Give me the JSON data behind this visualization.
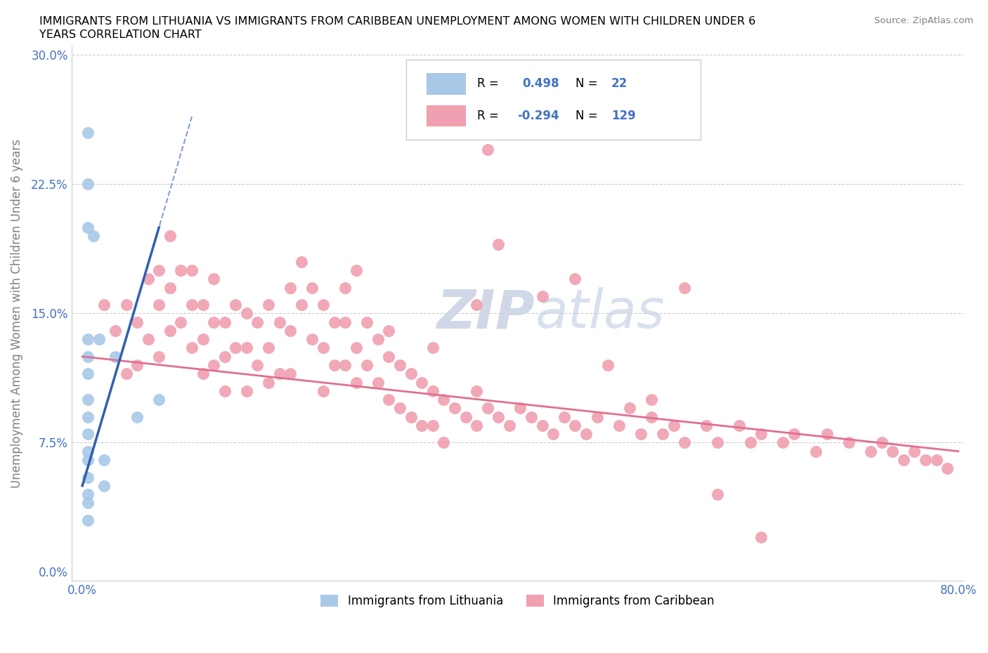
{
  "title_line1": "IMMIGRANTS FROM LITHUANIA VS IMMIGRANTS FROM CARIBBEAN UNEMPLOYMENT AMONG WOMEN WITH CHILDREN UNDER 6",
  "title_line2": "YEARS CORRELATION CHART",
  "source": "Source: ZipAtlas.com",
  "ylabel": "Unemployment Among Women with Children Under 6 years",
  "xlim": [
    0.0,
    0.8
  ],
  "ylim": [
    0.0,
    0.3
  ],
  "yticks": [
    0.0,
    0.075,
    0.15,
    0.225,
    0.3
  ],
  "ytick_labels": [
    "0.0%",
    "7.5%",
    "15.0%",
    "22.5%",
    "30.0%"
  ],
  "xtick_positions": [
    0.0,
    0.8
  ],
  "xtick_labels": [
    "0.0%",
    "80.0%"
  ],
  "R_blue": 0.498,
  "N_blue": 22,
  "R_pink": -0.294,
  "N_pink": 129,
  "blue_dot_color": "#a8c8e8",
  "pink_dot_color": "#f0a0b0",
  "blue_line_color": "#3060b0",
  "pink_line_color": "#e07090",
  "grid_color": "#cccccc",
  "watermark_color": "#d0d8e8",
  "blue_scatter_x": [
    0.005,
    0.005,
    0.005,
    0.005,
    0.005,
    0.005,
    0.005,
    0.005,
    0.005,
    0.005,
    0.005,
    0.005,
    0.005,
    0.005,
    0.005,
    0.01,
    0.015,
    0.02,
    0.02,
    0.03,
    0.05,
    0.07
  ],
  "blue_scatter_y": [
    0.255,
    0.225,
    0.2,
    0.135,
    0.125,
    0.115,
    0.1,
    0.09,
    0.08,
    0.07,
    0.065,
    0.055,
    0.045,
    0.04,
    0.03,
    0.195,
    0.135,
    0.065,
    0.05,
    0.125,
    0.09,
    0.1
  ],
  "pink_scatter_x": [
    0.02,
    0.03,
    0.04,
    0.04,
    0.05,
    0.05,
    0.06,
    0.06,
    0.07,
    0.07,
    0.07,
    0.08,
    0.08,
    0.08,
    0.09,
    0.09,
    0.1,
    0.1,
    0.1,
    0.11,
    0.11,
    0.11,
    0.12,
    0.12,
    0.12,
    0.13,
    0.13,
    0.13,
    0.14,
    0.14,
    0.15,
    0.15,
    0.15,
    0.16,
    0.16,
    0.17,
    0.17,
    0.17,
    0.18,
    0.18,
    0.19,
    0.19,
    0.19,
    0.2,
    0.2,
    0.21,
    0.21,
    0.22,
    0.22,
    0.22,
    0.23,
    0.23,
    0.24,
    0.24,
    0.24,
    0.25,
    0.25,
    0.26,
    0.26,
    0.27,
    0.27,
    0.28,
    0.28,
    0.29,
    0.29,
    0.3,
    0.3,
    0.31,
    0.31,
    0.32,
    0.32,
    0.33,
    0.33,
    0.34,
    0.35,
    0.36,
    0.36,
    0.37,
    0.38,
    0.39,
    0.4,
    0.41,
    0.42,
    0.43,
    0.44,
    0.45,
    0.46,
    0.47,
    0.49,
    0.5,
    0.51,
    0.52,
    0.53,
    0.54,
    0.55,
    0.57,
    0.58,
    0.6,
    0.61,
    0.62,
    0.64,
    0.65,
    0.67,
    0.68,
    0.7,
    0.72,
    0.73,
    0.74,
    0.75,
    0.76,
    0.77,
    0.78,
    0.79,
    0.37,
    0.25,
    0.45,
    0.55,
    0.38,
    0.42,
    0.28,
    0.32,
    0.36,
    0.48,
    0.52,
    0.58,
    0.62
  ],
  "pink_scatter_y": [
    0.155,
    0.14,
    0.155,
    0.115,
    0.145,
    0.12,
    0.17,
    0.135,
    0.175,
    0.155,
    0.125,
    0.195,
    0.165,
    0.14,
    0.175,
    0.145,
    0.175,
    0.155,
    0.13,
    0.155,
    0.135,
    0.115,
    0.17,
    0.145,
    0.12,
    0.145,
    0.125,
    0.105,
    0.155,
    0.13,
    0.15,
    0.13,
    0.105,
    0.145,
    0.12,
    0.155,
    0.13,
    0.11,
    0.145,
    0.115,
    0.165,
    0.14,
    0.115,
    0.18,
    0.155,
    0.165,
    0.135,
    0.155,
    0.13,
    0.105,
    0.145,
    0.12,
    0.165,
    0.145,
    0.12,
    0.13,
    0.11,
    0.145,
    0.12,
    0.135,
    0.11,
    0.125,
    0.1,
    0.12,
    0.095,
    0.115,
    0.09,
    0.11,
    0.085,
    0.105,
    0.085,
    0.1,
    0.075,
    0.095,
    0.09,
    0.105,
    0.085,
    0.095,
    0.09,
    0.085,
    0.095,
    0.09,
    0.085,
    0.08,
    0.09,
    0.085,
    0.08,
    0.09,
    0.085,
    0.095,
    0.08,
    0.09,
    0.08,
    0.085,
    0.075,
    0.085,
    0.075,
    0.085,
    0.075,
    0.08,
    0.075,
    0.08,
    0.07,
    0.08,
    0.075,
    0.07,
    0.075,
    0.07,
    0.065,
    0.07,
    0.065,
    0.065,
    0.06,
    0.245,
    0.175,
    0.17,
    0.165,
    0.19,
    0.16,
    0.14,
    0.13,
    0.155,
    0.12,
    0.1,
    0.045,
    0.02
  ]
}
